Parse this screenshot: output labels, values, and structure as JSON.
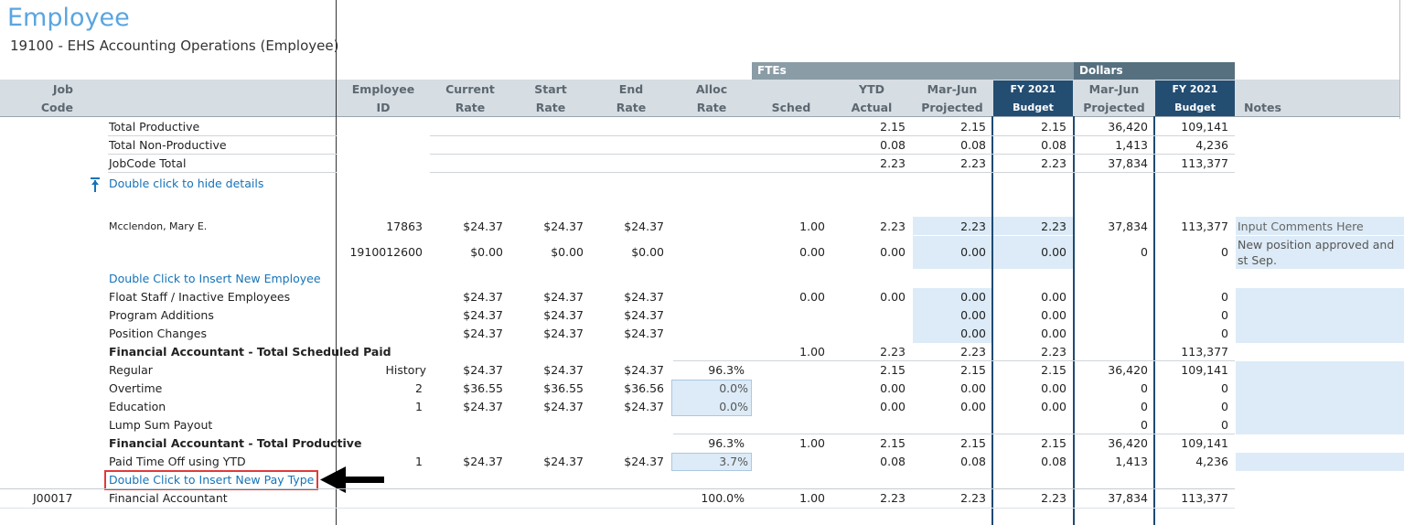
{
  "page": {
    "title": "Employee",
    "subtitle": "19100 - EHS Accounting Operations (Employee)"
  },
  "groups": {
    "ftes": "FTEs",
    "dollars": "Dollars"
  },
  "headers": {
    "job_code": [
      "Job",
      "Code"
    ],
    "employee_id": [
      "Employee",
      "ID"
    ],
    "current_rate": [
      "Current",
      "Rate"
    ],
    "start_rate": [
      "Start",
      "Rate"
    ],
    "end_rate": [
      "End",
      "Rate"
    ],
    "alloc_rate": [
      "Alloc",
      "Rate"
    ],
    "sched": "Sched",
    "ytd_actual": [
      "YTD",
      "Actual"
    ],
    "mar_jun_projected_fte": [
      "Mar-Jun",
      "Projected"
    ],
    "fy2021_budget_fte": [
      "FY 2021",
      "Budget"
    ],
    "mar_jun_projected_dollars": [
      "Mar-Jun",
      "Projected"
    ],
    "fy2021_budget_dollars": [
      "FY 2021",
      "Budget"
    ],
    "notes": "Notes"
  },
  "summary_rows": [
    {
      "label": "Total Productive",
      "ytd": "2.15",
      "proj": "2.15",
      "bud": "2.15",
      "dproj": "36,420",
      "dbud": "109,141"
    },
    {
      "label": "Total Non-Productive",
      "ytd": "0.08",
      "proj": "0.08",
      "bud": "0.08",
      "dproj": "1,413",
      "dbud": "4,236"
    },
    {
      "label": "JobCode Total",
      "ytd": "2.23",
      "proj": "2.23",
      "bud": "2.23",
      "dproj": "37,834",
      "dbud": "113,377"
    }
  ],
  "hide_details_link": "Double click to hide details",
  "employees": [
    {
      "name": "Mcclendon, Mary E.",
      "id": "17863",
      "cur": "$24.37",
      "start": "$24.37",
      "end": "$24.37",
      "sched": "1.00",
      "ytd": "2.23",
      "proj": "2.23",
      "bud": "2.23",
      "dproj": "37,834",
      "dbud": "113,377",
      "note": "Input Comments Here"
    },
    {
      "name": "",
      "id": "1910012600",
      "cur": "$0.00",
      "start": "$0.00",
      "end": "$0.00",
      "sched": "0.00",
      "ytd": "0.00",
      "proj": "0.00",
      "bud": "0.00",
      "dproj": "0",
      "dbud": "0",
      "note": "New position approved and st Sep."
    }
  ],
  "insert_employee_link": "Double Click to Insert New Employee",
  "detail_rows": [
    {
      "label": "Float Staff / Inactive Employees",
      "cur": "$24.37",
      "start": "$24.37",
      "end": "$24.37",
      "sched": "0.00",
      "ytd": "0.00",
      "proj": "0.00",
      "bud": "0.00",
      "dbud": "0"
    },
    {
      "label": "Program Additions",
      "cur": "$24.37",
      "start": "$24.37",
      "end": "$24.37",
      "proj": "0.00",
      "bud": "0.00",
      "dbud": "0"
    },
    {
      "label": "Position Changes",
      "cur": "$24.37",
      "start": "$24.37",
      "end": "$24.37",
      "proj": "0.00",
      "bud": "0.00",
      "dbud": "0"
    }
  ],
  "total_sched_paid": {
    "label": "Financial Accountant  - Total Scheduled Paid",
    "sched": "1.00",
    "ytd": "2.23",
    "proj": "2.23",
    "bud": "2.23",
    "dbud": "113,377"
  },
  "pay_types": [
    {
      "label": "Regular",
      "id": "History",
      "cur": "$24.37",
      "start": "$24.37",
      "end": "$24.37",
      "alloc": "96.3%",
      "ytd": "2.15",
      "proj": "2.15",
      "bud": "2.15",
      "dproj": "36,420",
      "dbud": "109,141"
    },
    {
      "label": "Overtime",
      "id": "2",
      "cur": "$36.55",
      "start": "$36.55",
      "end": "$36.56",
      "alloc": "0.0%",
      "ytd": "0.00",
      "proj": "0.00",
      "bud": "0.00",
      "dproj": "0",
      "dbud": "0"
    },
    {
      "label": "Education",
      "id": "1",
      "cur": "$24.37",
      "start": "$24.37",
      "end": "$24.37",
      "alloc": "0.0%",
      "ytd": "0.00",
      "proj": "0.00",
      "bud": "0.00",
      "dproj": "0",
      "dbud": "0"
    },
    {
      "label": "Lump Sum Payout",
      "dproj": "0",
      "dbud": "0"
    }
  ],
  "total_productive": {
    "label": "Financial Accountant  - Total Productive",
    "alloc": "96.3%",
    "sched": "1.00",
    "ytd": "2.15",
    "proj": "2.15",
    "bud": "2.15",
    "dproj": "36,420",
    "dbud": "109,141"
  },
  "pto_row": {
    "label": "Paid Time Off using YTD",
    "id": "1",
    "cur": "$24.37",
    "start": "$24.37",
    "end": "$24.37",
    "alloc": "3.7%",
    "ytd": "0.08",
    "proj": "0.08",
    "bud": "0.08",
    "dproj": "1,413",
    "dbud": "4,236"
  },
  "insert_paytype_link": "Double Click to Insert New Pay Type",
  "jobcode_row": {
    "code": "J00017",
    "label": "Financial Accountant",
    "alloc": "100.0%",
    "sched": "1.00",
    "ytd": "2.23",
    "proj": "2.23",
    "bud": "2.23",
    "dproj": "37,834",
    "dbud": "113,377"
  },
  "colors": {
    "accent": "#5aa5e0",
    "header_dark": "#244d72",
    "highlight": "#dcebf7",
    "link": "#1573b8",
    "callout": "#e03a3a"
  }
}
